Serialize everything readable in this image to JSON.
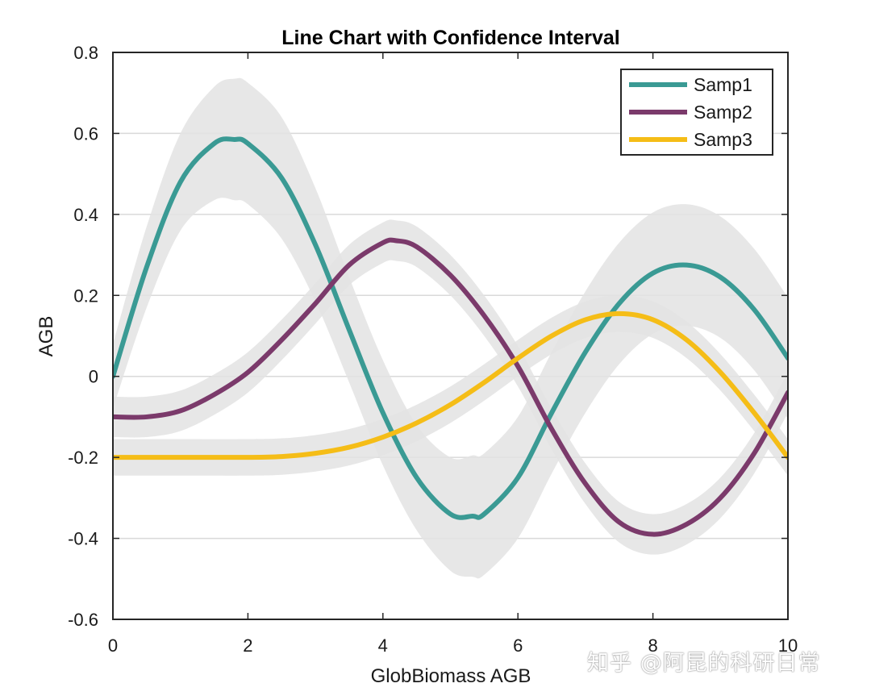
{
  "chart_data": {
    "type": "line",
    "title": "Line Chart with Confidence Interval",
    "xlabel": "GlobBiomass AGB",
    "ylabel": "AGB",
    "xlim": [
      0,
      10
    ],
    "ylim": [
      -0.6,
      0.8
    ],
    "x_ticks": [
      0,
      2,
      4,
      6,
      8,
      10
    ],
    "y_ticks": [
      -0.6,
      -0.4,
      -0.2,
      0,
      0.2,
      0.4,
      0.6,
      0.8
    ],
    "x_tick_labels": [
      "0",
      "2",
      "4",
      "6",
      "8",
      "10"
    ],
    "y_tick_labels": [
      "-0.6",
      "-0.4",
      "-0.2",
      "0",
      "0.2",
      "0.4",
      "0.6",
      "0.8"
    ],
    "grid": "horizontal",
    "legend_position": "top-right",
    "band_color": "#e3e3e3",
    "series": [
      {
        "name": "Samp1",
        "color": "#3a9a94",
        "x": [
          0,
          0.5,
          1,
          1.5,
          1.8,
          2,
          2.5,
          3,
          3.5,
          4,
          4.5,
          5,
          5.33,
          5.5,
          6,
          6.5,
          7,
          7.5,
          8,
          8.5,
          9,
          9.5,
          10
        ],
        "y": [
          0,
          0.27,
          0.48,
          0.575,
          0.585,
          0.575,
          0.49,
          0.325,
          0.115,
          -0.09,
          -0.25,
          -0.34,
          -0.345,
          -0.34,
          -0.25,
          -0.09,
          0.06,
          0.18,
          0.255,
          0.275,
          0.245,
          0.165,
          0.045
        ],
        "band_halfwidth": [
          0.08,
          0.1,
          0.12,
          0.14,
          0.15,
          0.15,
          0.15,
          0.14,
          0.13,
          0.13,
          0.13,
          0.14,
          0.15,
          0.15,
          0.15,
          0.15,
          0.15,
          0.15,
          0.15,
          0.15,
          0.15,
          0.15,
          0.15
        ]
      },
      {
        "name": "Samp2",
        "color": "#7b3a6b",
        "x": [
          0,
          0.5,
          1,
          1.5,
          2,
          2.5,
          3,
          3.5,
          4,
          4.2,
          4.5,
          5,
          5.5,
          6,
          6.5,
          7,
          7.5,
          8,
          8.5,
          9,
          9.5,
          10
        ],
        "y": [
          -0.1,
          -0.1,
          -0.085,
          -0.045,
          0.01,
          0.09,
          0.18,
          0.275,
          0.33,
          0.335,
          0.32,
          0.25,
          0.15,
          0.025,
          -0.13,
          -0.265,
          -0.36,
          -0.39,
          -0.365,
          -0.3,
          -0.19,
          -0.04
        ],
        "band_halfwidth": [
          0.05,
          0.05,
          0.05,
          0.05,
          0.05,
          0.05,
          0.05,
          0.05,
          0.05,
          0.05,
          0.05,
          0.05,
          0.05,
          0.05,
          0.05,
          0.05,
          0.05,
          0.05,
          0.05,
          0.05,
          0.05,
          0.05
        ]
      },
      {
        "name": "Samp3",
        "color": "#f5bd17",
        "x": [
          0,
          1,
          2,
          2.5,
          3,
          3.5,
          4,
          4.5,
          5,
          5.5,
          6,
          6.5,
          7,
          7.5,
          8,
          8.5,
          9,
          9.5,
          10
        ],
        "y": [
          -0.2,
          -0.2,
          -0.2,
          -0.198,
          -0.19,
          -0.175,
          -0.15,
          -0.115,
          -0.07,
          -0.015,
          0.045,
          0.1,
          0.14,
          0.155,
          0.14,
          0.09,
          0.01,
          -0.09,
          -0.2
        ],
        "band_halfwidth": [
          0.045,
          0.045,
          0.045,
          0.045,
          0.045,
          0.045,
          0.045,
          0.045,
          0.045,
          0.045,
          0.045,
          0.045,
          0.045,
          0.045,
          0.045,
          0.045,
          0.045,
          0.045,
          0.045
        ]
      }
    ]
  },
  "watermark": "知乎 @阿昆的科研日常"
}
